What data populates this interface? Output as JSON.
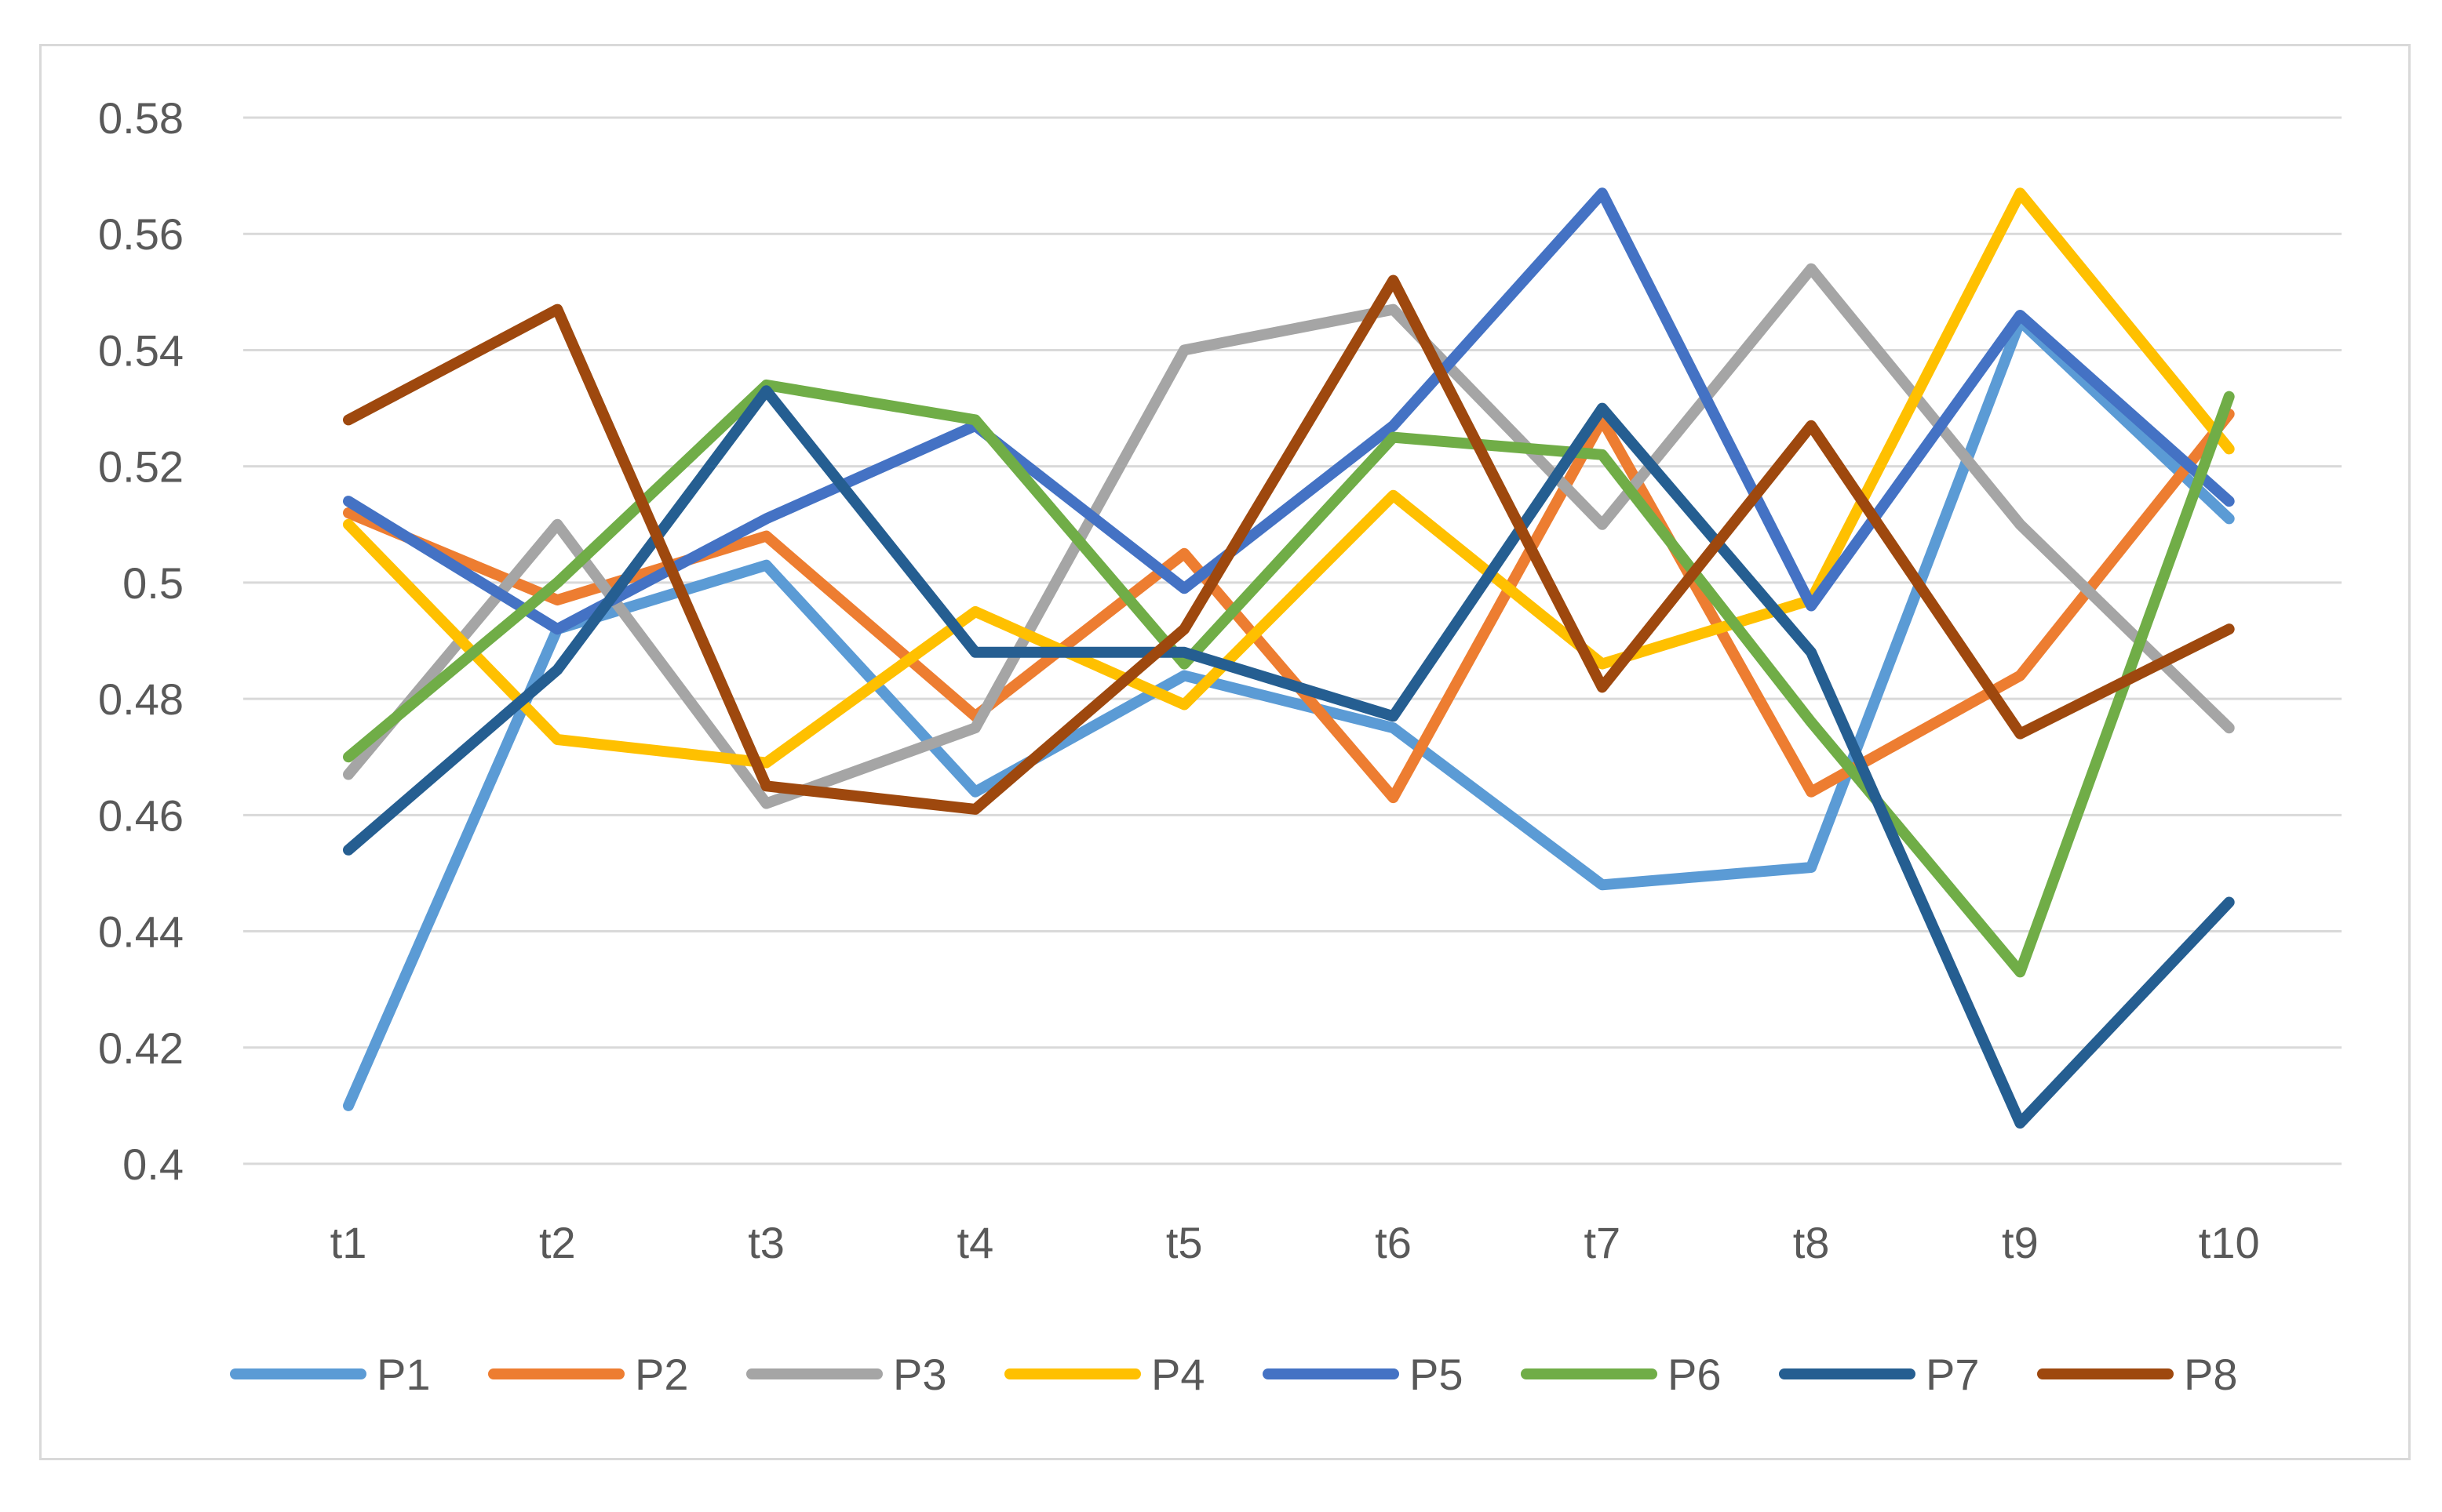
{
  "chart_data": {
    "type": "line",
    "title": "",
    "xlabel": "",
    "ylabel": "",
    "categories": [
      "t1",
      "t2",
      "t3",
      "t4",
      "t5",
      "t6",
      "t7",
      "t8",
      "t9",
      "t10"
    ],
    "ylim": [
      0.4,
      0.58
    ],
    "yticks": [
      0.4,
      0.42,
      0.44,
      0.46,
      0.48,
      0.5,
      0.52,
      0.54,
      0.56,
      0.58
    ],
    "ytick_labels": [
      "0.4",
      "0.42",
      "0.44",
      "0.46",
      "0.48",
      "0.5",
      "0.52",
      "0.54",
      "0.56",
      "0.58"
    ],
    "grid": true,
    "legend_position": "bottom",
    "series": [
      {
        "name": "P1",
        "color": "#5b9bd5",
        "values": [
          0.41,
          0.492,
          0.503,
          0.464,
          0.484,
          0.475,
          0.448,
          0.451,
          0.545,
          0.511
        ]
      },
      {
        "name": "P2",
        "color": "#ed7d31",
        "values": [
          0.512,
          0.497,
          0.508,
          0.477,
          0.505,
          0.463,
          0.528,
          0.464,
          0.484,
          0.529
        ]
      },
      {
        "name": "P3",
        "color": "#a5a5a5",
        "values": [
          0.467,
          0.51,
          0.462,
          0.475,
          0.54,
          0.547,
          0.51,
          0.554,
          0.51,
          0.475
        ]
      },
      {
        "name": "P4",
        "color": "#ffc000",
        "values": [
          0.51,
          0.473,
          0.469,
          0.495,
          0.479,
          0.515,
          0.486,
          0.497,
          0.567,
          0.523
        ]
      },
      {
        "name": "P5",
        "color": "#4472c4",
        "values": [
          0.514,
          0.492,
          0.511,
          0.527,
          0.499,
          0.527,
          0.567,
          0.496,
          0.546,
          0.514
        ]
      },
      {
        "name": "P6",
        "color": "#70ad47",
        "values": [
          0.47,
          0.5,
          0.534,
          0.528,
          0.486,
          0.525,
          0.522,
          0.476,
          0.433,
          0.532
        ]
      },
      {
        "name": "P7",
        "color": "#255e91",
        "values": [
          0.454,
          0.485,
          0.533,
          0.488,
          0.488,
          0.477,
          0.53,
          0.488,
          0.407,
          0.445
        ]
      },
      {
        "name": "P8",
        "color": "#9e480e",
        "values": [
          0.528,
          0.547,
          0.465,
          0.461,
          0.492,
          0.552,
          0.482,
          0.527,
          0.474,
          0.492
        ]
      }
    ]
  }
}
